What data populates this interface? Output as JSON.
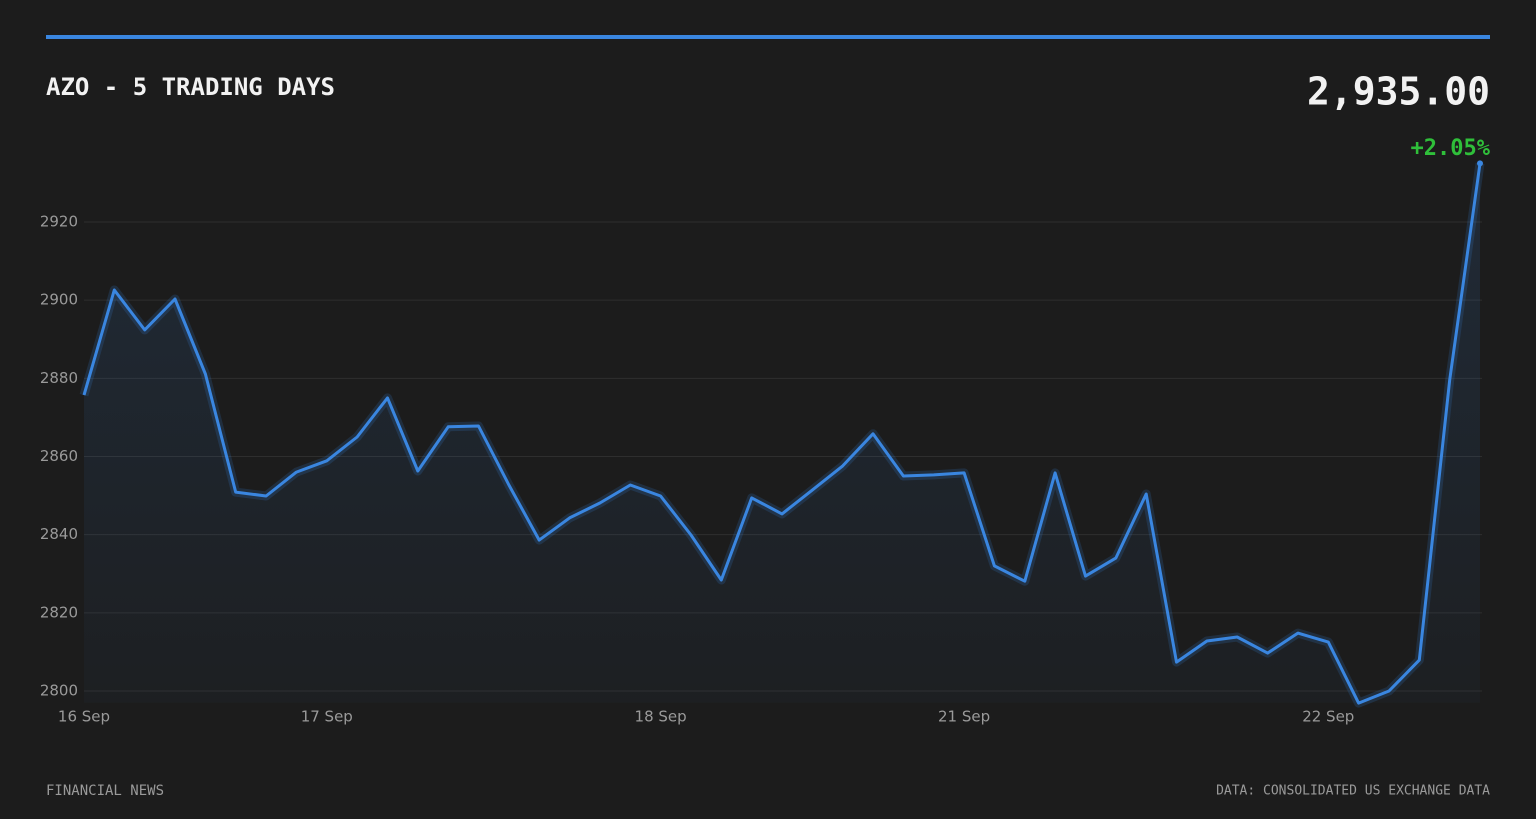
{
  "chart_data": {
    "type": "line",
    "title": "AZO - 5 TRADING DAYS",
    "price": "2,935.00",
    "change": "+2.05%",
    "footer_left": "FINANCIAL NEWS",
    "footer_right": "DATA: CONSOLIDATED US EXCHANGE DATA",
    "categories": [
      "16 Sep",
      null,
      null,
      null,
      null,
      null,
      null,
      null,
      "17 Sep",
      null,
      null,
      null,
      null,
      null,
      null,
      null,
      null,
      null,
      null,
      "18 Sep",
      null,
      null,
      null,
      null,
      null,
      null,
      null,
      null,
      null,
      "21 Sep",
      null,
      null,
      null,
      null,
      null,
      null,
      null,
      null,
      null,
      null,
      null,
      "22 Sep",
      null,
      null,
      null,
      null,
      null
    ],
    "series": [
      {
        "name": "AZO",
        "color": "#3a86e0",
        "values": [
          2875.7,
          2902.6,
          2892.4,
          2900.3,
          2881.1,
          2850.9,
          2849.9,
          2856.0,
          2858.9,
          2865.0,
          2875.0,
          2856.3,
          2867.6,
          2867.8,
          2852.7,
          2838.6,
          2844.3,
          2848.1,
          2852.7,
          2849.9,
          2839.9,
          2828.4,
          2849.4,
          2845.3,
          2851.4,
          2857.6,
          2865.8,
          2855.0,
          2855.3,
          2855.8,
          2832.0,
          2828.1,
          2855.8,
          2829.4,
          2834.0,
          2850.4,
          2807.4,
          2812.8,
          2813.8,
          2809.7,
          2814.8,
          2812.5,
          2796.9,
          2800.0,
          2807.9,
          2879.6,
          2935.0
        ]
      }
    ],
    "ylim": [
      2797,
      2935
    ],
    "yticks": [
      2800,
      2820,
      2840,
      2860,
      2880,
      2900,
      2920
    ],
    "grid": true,
    "change_color": "#2fbf3a"
  }
}
